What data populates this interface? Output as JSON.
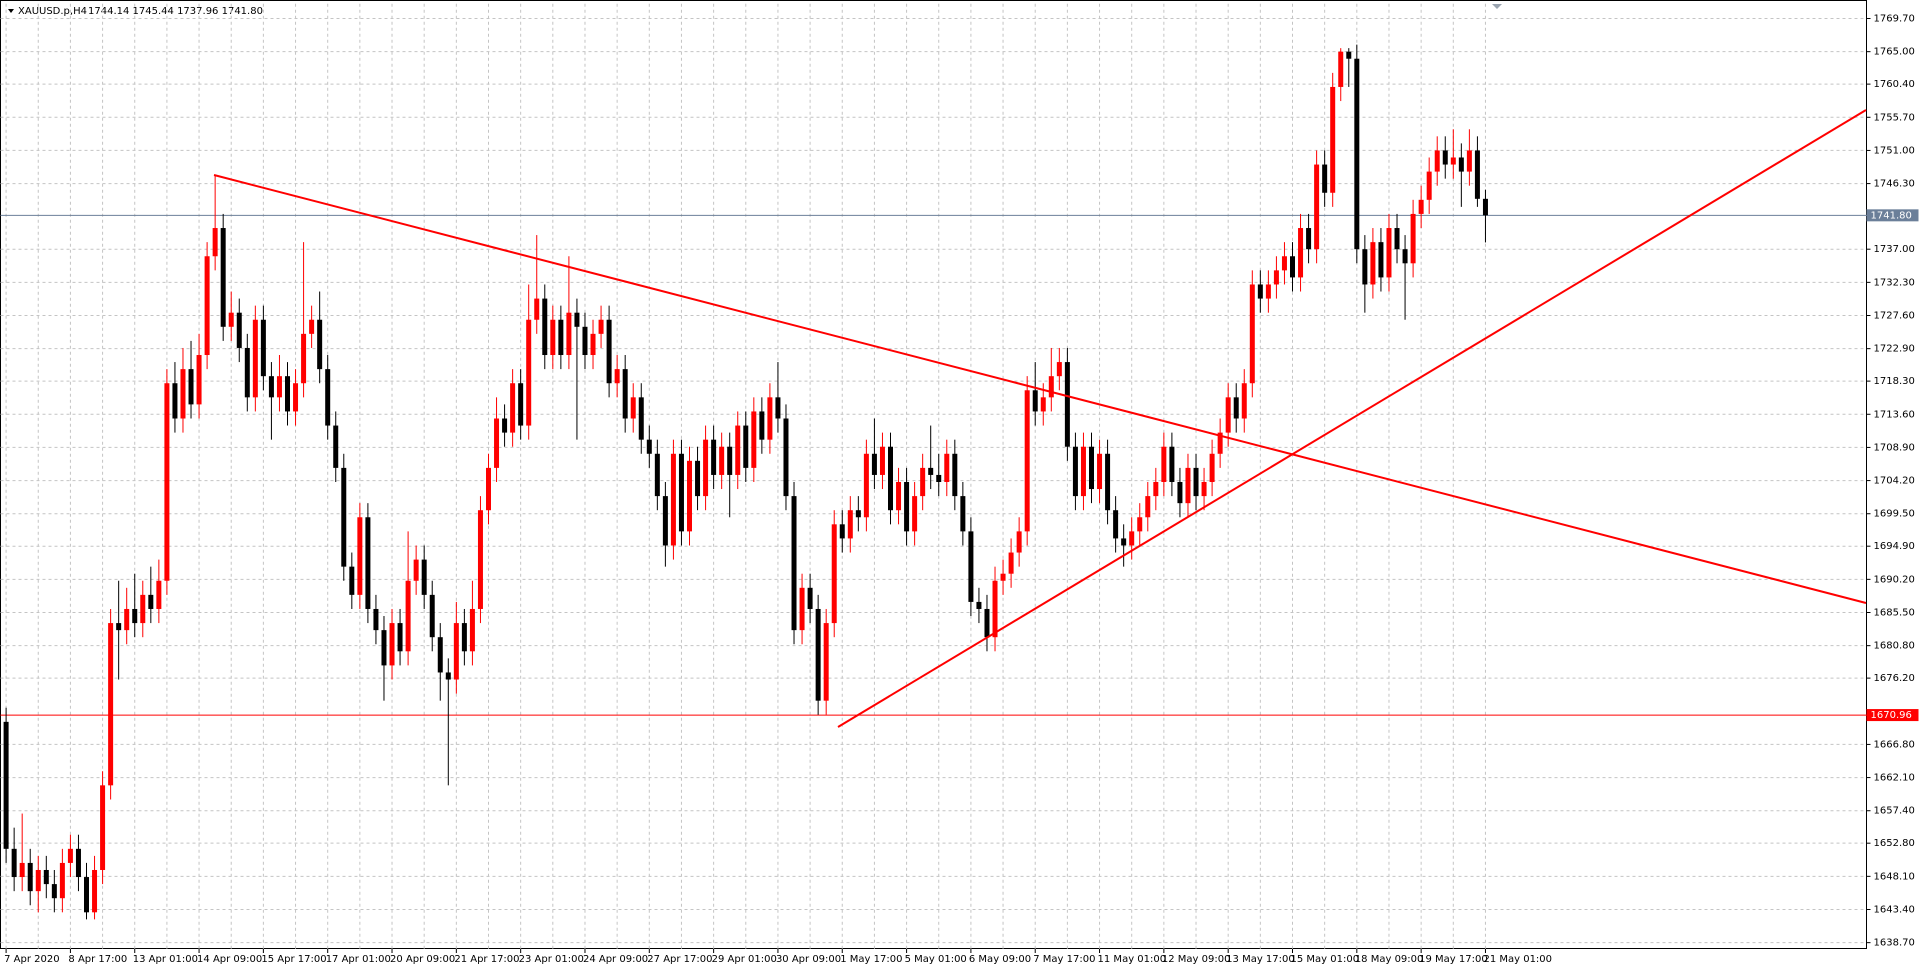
{
  "chart_data": {
    "type": "candlestick",
    "symbol": "XAUUSD.p,H4",
    "ohlc_label": "1744.14 1745.44 1737.96 1741.80",
    "up_color": "#ff0000",
    "down_color": "#000000",
    "grid": true,
    "ylim": [
      1637.8,
      1771.8
    ],
    "yticks": [
      {
        "value": 1769.7,
        "label": "1769.70"
      },
      {
        "value": 1765.0,
        "label": "1765.00"
      },
      {
        "value": 1760.4,
        "label": "1760.40"
      },
      {
        "value": 1755.7,
        "label": "1755.70"
      },
      {
        "value": 1751.0,
        "label": "1751.00"
      },
      {
        "value": 1746.3,
        "label": "1746.30"
      },
      {
        "value": 1737.0,
        "label": "1737.00"
      },
      {
        "value": 1732.3,
        "label": "1732.30"
      },
      {
        "value": 1727.6,
        "label": "1727.60"
      },
      {
        "value": 1722.9,
        "label": "1722.90"
      },
      {
        "value": 1718.3,
        "label": "1718.30"
      },
      {
        "value": 1713.6,
        "label": "1713.60"
      },
      {
        "value": 1708.9,
        "label": "1708.90"
      },
      {
        "value": 1704.2,
        "label": "1704.20"
      },
      {
        "value": 1699.5,
        "label": "1699.50"
      },
      {
        "value": 1694.9,
        "label": "1694.90"
      },
      {
        "value": 1690.2,
        "label": "1690.20"
      },
      {
        "value": 1685.5,
        "label": "1685.50"
      },
      {
        "value": 1680.8,
        "label": "1680.80"
      },
      {
        "value": 1676.2,
        "label": "1676.20"
      },
      {
        "value": 1666.8,
        "label": "1666.80"
      },
      {
        "value": 1662.1,
        "label": "1662.10"
      },
      {
        "value": 1657.4,
        "label": "1657.40"
      },
      {
        "value": 1652.8,
        "label": "1652.80"
      },
      {
        "value": 1648.1,
        "label": "1648.10"
      },
      {
        "value": 1643.4,
        "label": "1643.40"
      },
      {
        "value": 1638.7,
        "label": "1638.70"
      }
    ],
    "hlines": [
      {
        "value": 1741.8,
        "label": "1741.80",
        "color": "#6b7f99"
      },
      {
        "value": 1670.96,
        "label": "1670.96",
        "color": "#ff0000"
      }
    ],
    "categories": [
      "7 Apr 2020",
      null,
      null,
      null,
      null,
      null,
      null,
      null,
      "8 Apr 17:00",
      null,
      null,
      null,
      null,
      null,
      null,
      null,
      "13 Apr 01:00",
      null,
      null,
      null,
      null,
      null,
      null,
      null,
      "14 Apr 09:00",
      null,
      null,
      null,
      null,
      null,
      null,
      null,
      "15 Apr 17:00",
      null,
      null,
      null,
      null,
      null,
      null,
      null,
      "17 Apr 01:00",
      null,
      null,
      null,
      null,
      null,
      null,
      null,
      "20 Apr 09:00",
      null,
      null,
      null,
      null,
      null,
      null,
      null,
      "21 Apr 17:00",
      null,
      null,
      null,
      null,
      null,
      null,
      null,
      "23 Apr 01:00",
      null,
      null,
      null,
      null,
      null,
      null,
      null,
      "24 Apr 09:00",
      null,
      null,
      null,
      null,
      null,
      null,
      null,
      "27 Apr 17:00",
      null,
      null,
      null,
      null,
      null,
      null,
      null,
      "29 Apr 01:00",
      null,
      null,
      null,
      null,
      null,
      null,
      null,
      "30 Apr 09:00",
      null,
      null,
      null,
      null,
      null,
      null,
      null,
      "1 May 17:00",
      null,
      null,
      null,
      null,
      null,
      null,
      null,
      "5 May 01:00",
      null,
      null,
      null,
      null,
      null,
      null,
      null,
      "6 May 09:00",
      null,
      null,
      null,
      null,
      null,
      null,
      null,
      "7 May 17:00",
      null,
      null,
      null,
      null,
      null,
      null,
      null,
      "11 May 01:00",
      null,
      null,
      null,
      null,
      null,
      null,
      null,
      "12 May 09:00",
      null,
      null,
      null,
      null,
      null,
      null,
      null,
      "13 May 17:00",
      null,
      null,
      null,
      null,
      null,
      null,
      null,
      "15 May 01:00",
      null,
      null,
      null,
      null,
      null,
      null,
      null,
      "18 May 09:00",
      null,
      null,
      null,
      null,
      null,
      null,
      null,
      "19 May 17:00",
      null,
      null,
      null,
      null,
      null,
      null,
      null,
      "21 May 01:00"
    ],
    "candles": [
      [
        1670,
        1672,
        1650,
        1652
      ],
      [
        1652,
        1655,
        1646,
        1648
      ],
      [
        1648,
        1657,
        1646,
        1650
      ],
      [
        1650,
        1652,
        1644,
        1646
      ],
      [
        1646,
        1651,
        1643,
        1649
      ],
      [
        1649,
        1651,
        1645,
        1647
      ],
      [
        1647,
        1649,
        1643,
        1645
      ],
      [
        1645,
        1652,
        1643,
        1650
      ],
      [
        1650,
        1654,
        1648,
        1652
      ],
      [
        1652,
        1654,
        1646,
        1648
      ],
      [
        1648,
        1650,
        1642,
        1643
      ],
      [
        1643,
        1651,
        1642,
        1649
      ],
      [
        1649,
        1663,
        1647,
        1661
      ],
      [
        1661,
        1686,
        1659,
        1684
      ],
      [
        1684,
        1690,
        1676,
        1683
      ],
      [
        1683,
        1689,
        1681,
        1686
      ],
      [
        1686,
        1691,
        1682,
        1684
      ],
      [
        1684,
        1690,
        1682,
        1688
      ],
      [
        1688,
        1692,
        1684,
        1686
      ],
      [
        1686,
        1693,
        1684,
        1690
      ],
      [
        1690,
        1720,
        1688,
        1718
      ],
      [
        1718,
        1721,
        1711,
        1713
      ],
      [
        1713,
        1723,
        1711,
        1720
      ],
      [
        1720,
        1724,
        1713,
        1715
      ],
      [
        1715,
        1725,
        1713,
        1722
      ],
      [
        1722,
        1738,
        1720,
        1736
      ],
      [
        1736,
        1747.5,
        1734,
        1740
      ],
      [
        1740,
        1742,
        1724,
        1726
      ],
      [
        1726,
        1731,
        1724,
        1728
      ],
      [
        1728,
        1730,
        1721,
        1723
      ],
      [
        1723,
        1725,
        1714,
        1716
      ],
      [
        1716,
        1729,
        1714,
        1727
      ],
      [
        1727,
        1729,
        1717,
        1719
      ],
      [
        1719,
        1721,
        1710,
        1716
      ],
      [
        1716,
        1722,
        1714,
        1719
      ],
      [
        1719,
        1721,
        1712,
        1714
      ],
      [
        1714,
        1720,
        1712,
        1718
      ],
      [
        1718,
        1738,
        1716,
        1725
      ],
      [
        1725,
        1729,
        1723,
        1727
      ],
      [
        1727,
        1731,
        1718,
        1720
      ],
      [
        1720,
        1722,
        1710,
        1712
      ],
      [
        1712,
        1714,
        1704,
        1706
      ],
      [
        1706,
        1708,
        1690,
        1692
      ],
      [
        1692,
        1694,
        1686,
        1688
      ],
      [
        1688,
        1701,
        1686,
        1699
      ],
      [
        1699,
        1701,
        1684,
        1686
      ],
      [
        1686,
        1688,
        1681,
        1683
      ],
      [
        1683,
        1685,
        1673,
        1678
      ],
      [
        1678,
        1686,
        1676,
        1684
      ],
      [
        1684,
        1686,
        1678,
        1680
      ],
      [
        1680,
        1697,
        1678,
        1690
      ],
      [
        1690,
        1695,
        1688,
        1693
      ],
      [
        1693,
        1695,
        1686,
        1688
      ],
      [
        1688,
        1690,
        1680,
        1682
      ],
      [
        1682,
        1684,
        1673,
        1677
      ],
      [
        1677,
        1679,
        1661,
        1676
      ],
      [
        1676,
        1687,
        1674,
        1684
      ],
      [
        1684,
        1686,
        1678,
        1680
      ],
      [
        1680,
        1690,
        1678,
        1686
      ],
      [
        1686,
        1702,
        1684,
        1700
      ],
      [
        1700,
        1708,
        1698,
        1706
      ],
      [
        1706,
        1716,
        1704,
        1713
      ],
      [
        1713,
        1715,
        1709,
        1711
      ],
      [
        1711,
        1720,
        1709,
        1718
      ],
      [
        1718,
        1720,
        1710,
        1712
      ],
      [
        1712,
        1732,
        1710,
        1727
      ],
      [
        1727,
        1739,
        1725,
        1730
      ],
      [
        1730,
        1732,
        1720,
        1722
      ],
      [
        1722,
        1729,
        1720,
        1727
      ],
      [
        1727,
        1729,
        1720,
        1722
      ],
      [
        1722,
        1736,
        1720,
        1728
      ],
      [
        1728,
        1730,
        1710,
        1726
      ],
      [
        1726,
        1728,
        1720,
        1722
      ],
      [
        1722,
        1727,
        1720,
        1725
      ],
      [
        1725,
        1729,
        1723,
        1727
      ],
      [
        1727,
        1729,
        1716,
        1718
      ],
      [
        1718,
        1722,
        1716,
        1720
      ],
      [
        1720,
        1722,
        1711,
        1713
      ],
      [
        1713,
        1718,
        1711,
        1716
      ],
      [
        1716,
        1718,
        1708,
        1710
      ],
      [
        1710,
        1712,
        1706,
        1708
      ],
      [
        1708,
        1710,
        1700,
        1702
      ],
      [
        1702,
        1704,
        1692,
        1695
      ],
      [
        1695,
        1710,
        1693,
        1708
      ],
      [
        1708,
        1710,
        1695,
        1697
      ],
      [
        1697,
        1709,
        1695,
        1707
      ],
      [
        1707,
        1709,
        1700,
        1702
      ],
      [
        1702,
        1712,
        1700,
        1710
      ],
      [
        1710,
        1712,
        1703,
        1705
      ],
      [
        1705,
        1711,
        1703,
        1709
      ],
      [
        1709,
        1711,
        1699,
        1705
      ],
      [
        1705,
        1714,
        1703,
        1712
      ],
      [
        1712,
        1714,
        1704,
        1706
      ],
      [
        1706,
        1716,
        1704,
        1714
      ],
      [
        1714,
        1716,
        1708,
        1710
      ],
      [
        1710,
        1718,
        1708,
        1716
      ],
      [
        1716,
        1721,
        1711,
        1713
      ],
      [
        1713,
        1715,
        1700,
        1702
      ],
      [
        1702,
        1704,
        1681,
        1683
      ],
      [
        1683,
        1691,
        1681,
        1689
      ],
      [
        1689,
        1691,
        1684,
        1686
      ],
      [
        1686,
        1688,
        1671,
        1673
      ],
      [
        1673,
        1686,
        1671,
        1684
      ],
      [
        1684,
        1700,
        1682,
        1698
      ],
      [
        1698,
        1700,
        1694,
        1696
      ],
      [
        1696,
        1702,
        1694,
        1700
      ],
      [
        1700,
        1702,
        1697,
        1699
      ],
      [
        1699,
        1710,
        1697,
        1708
      ],
      [
        1708,
        1713,
        1703,
        1705
      ],
      [
        1705,
        1711,
        1703,
        1709
      ],
      [
        1709,
        1711,
        1698,
        1700
      ],
      [
        1700,
        1706,
        1698,
        1704
      ],
      [
        1704,
        1706,
        1695,
        1697
      ],
      [
        1697,
        1704,
        1695,
        1702
      ],
      [
        1702,
        1708,
        1700,
        1706
      ],
      [
        1706,
        1712,
        1703,
        1705
      ],
      [
        1705,
        1708,
        1702,
        1704
      ],
      [
        1704,
        1710,
        1702,
        1708
      ],
      [
        1708,
        1710,
        1700,
        1702
      ],
      [
        1702,
        1704,
        1695,
        1697
      ],
      [
        1697,
        1699,
        1685,
        1687
      ],
      [
        1687,
        1689,
        1684,
        1686
      ],
      [
        1686,
        1688,
        1680,
        1682
      ],
      [
        1682,
        1692,
        1680,
        1690
      ],
      [
        1690,
        1693,
        1688,
        1691
      ],
      [
        1691,
        1696,
        1689,
        1694
      ],
      [
        1694,
        1699,
        1692,
        1697
      ],
      [
        1697,
        1719,
        1695,
        1717
      ],
      [
        1717,
        1721,
        1712,
        1714
      ],
      [
        1714,
        1718,
        1712,
        1716
      ],
      [
        1716,
        1723,
        1714,
        1719
      ],
      [
        1719,
        1723,
        1717,
        1721
      ],
      [
        1721,
        1723,
        1707,
        1709
      ],
      [
        1709,
        1711,
        1700,
        1702
      ],
      [
        1702,
        1711,
        1700,
        1709
      ],
      [
        1709,
        1711,
        1701,
        1703
      ],
      [
        1703,
        1710,
        1701,
        1708
      ],
      [
        1708,
        1710,
        1698,
        1700
      ],
      [
        1700,
        1702,
        1694,
        1696
      ],
      [
        1696,
        1698,
        1692,
        1695
      ],
      [
        1695,
        1699,
        1693,
        1697
      ],
      [
        1697,
        1701,
        1695,
        1699
      ],
      [
        1699,
        1704,
        1697,
        1702
      ],
      [
        1702,
        1706,
        1700,
        1704
      ],
      [
        1704,
        1711,
        1702,
        1709
      ],
      [
        1709,
        1711,
        1702,
        1704
      ],
      [
        1704,
        1706,
        1699,
        1701
      ],
      [
        1701,
        1708,
        1699,
        1706
      ],
      [
        1706,
        1708,
        1700,
        1702
      ],
      [
        1702,
        1706,
        1700,
        1704
      ],
      [
        1704,
        1710,
        1702,
        1708
      ],
      [
        1708,
        1713,
        1706,
        1711
      ],
      [
        1711,
        1718,
        1709,
        1716
      ],
      [
        1716,
        1718,
        1711,
        1713
      ],
      [
        1713,
        1720,
        1711,
        1718
      ],
      [
        1718,
        1734,
        1716,
        1732
      ],
      [
        1732,
        1734,
        1728,
        1730
      ],
      [
        1730,
        1734,
        1728,
        1732
      ],
      [
        1732,
        1736,
        1730,
        1734
      ],
      [
        1734,
        1738,
        1732,
        1736
      ],
      [
        1736,
        1738,
        1731,
        1733
      ],
      [
        1733,
        1742,
        1731,
        1740
      ],
      [
        1740,
        1742,
        1735,
        1737
      ],
      [
        1737,
        1751,
        1735,
        1749
      ],
      [
        1749,
        1751,
        1743,
        1745
      ],
      [
        1745,
        1762,
        1743,
        1760
      ],
      [
        1760,
        1765.5,
        1758,
        1765
      ],
      [
        1765,
        1765.5,
        1760,
        1764
      ],
      [
        1764,
        1766,
        1735,
        1737
      ],
      [
        1737,
        1739,
        1728,
        1732
      ],
      [
        1732,
        1740,
        1730,
        1738
      ],
      [
        1738,
        1740,
        1731,
        1733
      ],
      [
        1733,
        1742,
        1731,
        1740
      ],
      [
        1740,
        1742,
        1735,
        1737
      ],
      [
        1737,
        1739,
        1727,
        1735
      ],
      [
        1735,
        1744,
        1733,
        1742
      ],
      [
        1742,
        1746,
        1740,
        1744
      ],
      [
        1744,
        1750,
        1742,
        1748
      ],
      [
        1748,
        1753,
        1746,
        1751
      ],
      [
        1751,
        1753,
        1747,
        1749
      ],
      [
        1749,
        1754,
        1747,
        1750
      ],
      [
        1750,
        1752,
        1743,
        1748
      ],
      [
        1748,
        1754,
        1746,
        1751
      ],
      [
        1751,
        1753,
        1743,
        1744.14
      ],
      [
        1744.14,
        1745.44,
        1737.96,
        1741.8
      ]
    ]
  }
}
